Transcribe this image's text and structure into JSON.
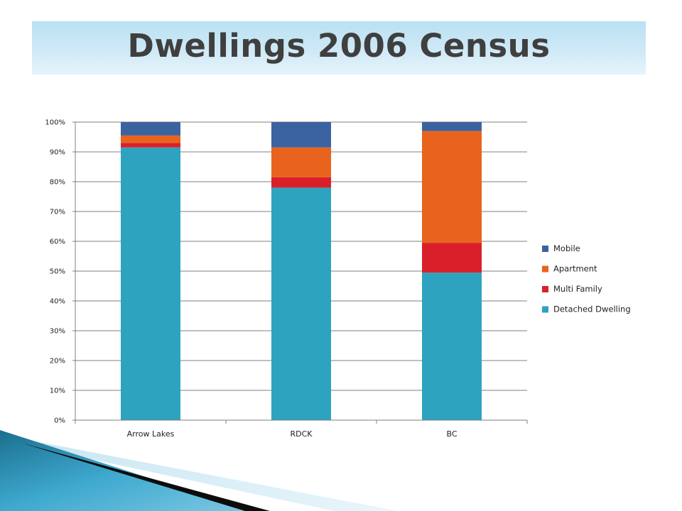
{
  "slide": {
    "title": "Dwellings 2006 Census"
  },
  "colors": {
    "detached": "#2ea3bf",
    "multi": "#d9202a",
    "apartment": "#e8641e",
    "mobile": "#3a63a0",
    "grid": "#7f7f7f",
    "title_bg": "#cfe9f6"
  },
  "chart_data": {
    "type": "bar",
    "stacked": true,
    "percent_stacked": true,
    "categories": [
      "Arrow Lakes",
      "RDCK",
      "BC"
    ],
    "series": [
      {
        "name": "Detached Dwelling",
        "color": "#2ea3bf",
        "values": [
          91.5,
          78,
          49.5
        ]
      },
      {
        "name": "Multi Family",
        "color": "#d9202a",
        "values": [
          1.5,
          3.5,
          10
        ]
      },
      {
        "name": "Apartment",
        "color": "#e8641e",
        "values": [
          2.5,
          10,
          37.5
        ]
      },
      {
        "name": "Mobile",
        "color": "#3a63a0",
        "values": [
          4.5,
          8.5,
          3
        ]
      }
    ],
    "yticks": [
      "0%",
      "10%",
      "20%",
      "30%",
      "40%",
      "50%",
      "60%",
      "70%",
      "80%",
      "90%",
      "100%"
    ],
    "ylim": [
      0,
      100
    ],
    "grid": true,
    "legend": [
      "Mobile",
      "Apartment",
      "Multi Family",
      "Detached Dwelling"
    ],
    "legend_position": "right"
  }
}
